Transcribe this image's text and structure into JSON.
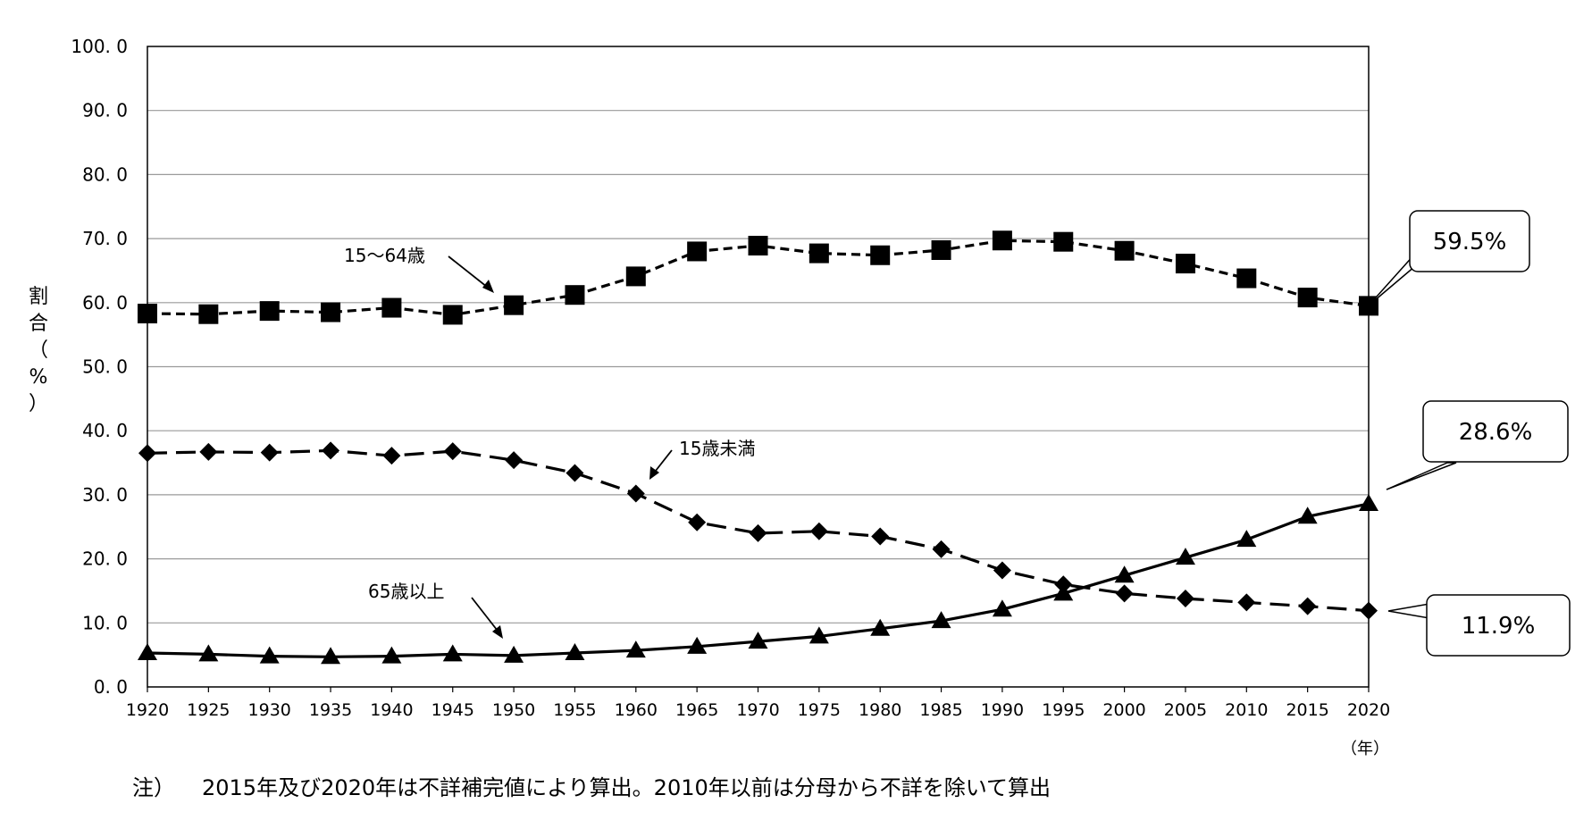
{
  "chart_data": {
    "type": "line",
    "ylabel": "割合（%）",
    "xunit": "（年）",
    "ylim": [
      0,
      100
    ],
    "yticks": [
      "0.0",
      "10.0",
      "20.0",
      "30.0",
      "40.0",
      "50.0",
      "60.0",
      "70.0",
      "80.0",
      "90.0",
      "100.0"
    ],
    "x": [
      1920,
      1925,
      1930,
      1935,
      1940,
      1945,
      1950,
      1955,
      1960,
      1965,
      1970,
      1975,
      1980,
      1985,
      1990,
      1995,
      2000,
      2005,
      2010,
      2015,
      2020
    ],
    "grid": true,
    "series": [
      {
        "name": "15～64歳",
        "marker": "square",
        "line": "dashed",
        "values": [
          58.3,
          58.2,
          58.7,
          58.5,
          59.2,
          58.1,
          59.6,
          61.2,
          64.1,
          68.0,
          68.9,
          67.7,
          67.4,
          68.2,
          69.7,
          69.5,
          68.1,
          66.1,
          63.8,
          60.8,
          59.5
        ]
      },
      {
        "name": "15歳未満",
        "marker": "diamond",
        "line": "dashed",
        "values": [
          36.5,
          36.7,
          36.6,
          36.9,
          36.1,
          36.8,
          35.4,
          33.4,
          30.2,
          25.7,
          24.0,
          24.3,
          23.5,
          21.5,
          18.2,
          16.0,
          14.6,
          13.8,
          13.2,
          12.6,
          11.9
        ]
      },
      {
        "name": "65歳以上",
        "marker": "triangle",
        "line": "solid",
        "values": [
          5.3,
          5.1,
          4.8,
          4.7,
          4.8,
          5.1,
          4.9,
          5.3,
          5.7,
          6.3,
          7.1,
          7.9,
          9.1,
          10.3,
          12.1,
          14.6,
          17.4,
          20.2,
          23.0,
          26.6,
          28.6
        ]
      }
    ],
    "callouts": [
      "59.5%",
      "28.6%",
      "11.9%"
    ]
  },
  "note": {
    "prefix": "注）",
    "text": "2015年及び2020年は不詳補完値により算出。2010年以前は分母から不詳を除いて算出"
  }
}
